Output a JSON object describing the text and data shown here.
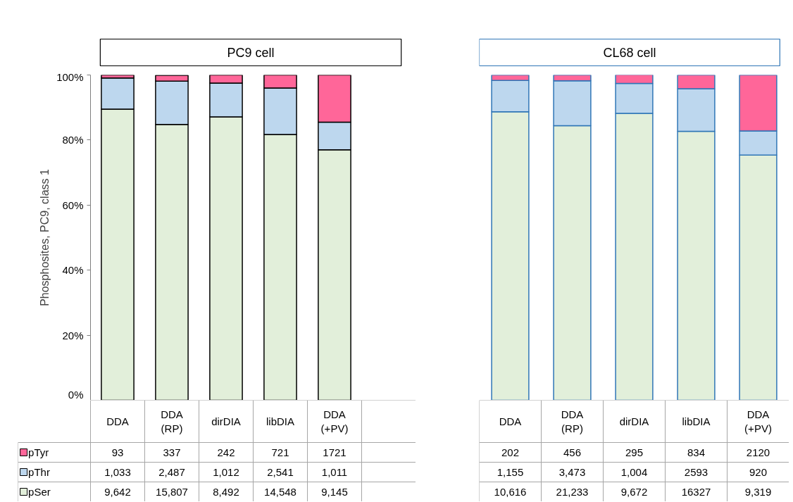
{
  "chart_data": [
    {
      "type": "bar",
      "stacked": true,
      "title": "PC9 cell",
      "ylabel": "Phosphosites, PC9, class 1",
      "legend": "bottom left",
      "categories": [
        "DDA",
        "DDA\n(RP)",
        "dirDIA",
        "libDIA",
        "DDA\n(+PV)"
      ],
      "ylim": [
        0,
        100
      ],
      "yticks": [
        {
          "value": 0,
          "label": "0%"
        },
        {
          "value": 20,
          "label": "20%"
        },
        {
          "value": 40,
          "label": "40%"
        },
        {
          "value": 60,
          "label": "60%"
        },
        {
          "value": 80,
          "label": "80%"
        },
        {
          "value": 100,
          "label": "100%"
        }
      ],
      "series": [
        {
          "name": "pSer",
          "color": "#e2efda",
          "values": [
            89.5,
            84.8,
            87.1,
            81.7,
            77.0
          ]
        },
        {
          "name": "pThr",
          "color": "#bdd7ee",
          "values": [
            9.6,
            13.3,
            10.4,
            14.3,
            8.5
          ]
        },
        {
          "name": "pTyr",
          "color": "#ff6699",
          "values": [
            0.9,
            1.8,
            2.5,
            4.0,
            14.5
          ]
        }
      ],
      "annotations": [
        "93",
        "337",
        "242",
        "721",
        "1721",
        "1,033",
        "2,487",
        "1,012",
        "2,541",
        "1,011",
        "9,642",
        "15,807",
        "8,492",
        "14,548",
        "9,145"
      ]
    },
    {
      "type": "bar",
      "stacked": true,
      "title": "CL68 cell",
      "tick_labels": "x",
      "categories": [
        "DDA",
        "DDA\n(RP)",
        "dirDIA",
        "libDIA",
        "DDA\n(+PV)"
      ],
      "ylim": [
        0,
        100
      ],
      "series": [
        {
          "color": "#e2efda",
          "values": [
            88.7,
            84.4,
            88.2,
            82.7,
            75.4
          ]
        },
        {
          "color": "#bdd7ee",
          "values": [
            9.6,
            13.8,
            9.2,
            13.1,
            7.4
          ]
        },
        {
          "color": "#ff6699",
          "values": [
            1.7,
            1.8,
            2.7,
            4.2,
            17.2
          ]
        }
      ],
      "annotations": [
        "202",
        "456",
        "295",
        "834",
        "2120",
        "1,155",
        "3,473",
        "1,004",
        "2593",
        "920",
        "10,616",
        "21,233",
        "9,672",
        "16327",
        "9,319"
      ]
    }
  ]
}
